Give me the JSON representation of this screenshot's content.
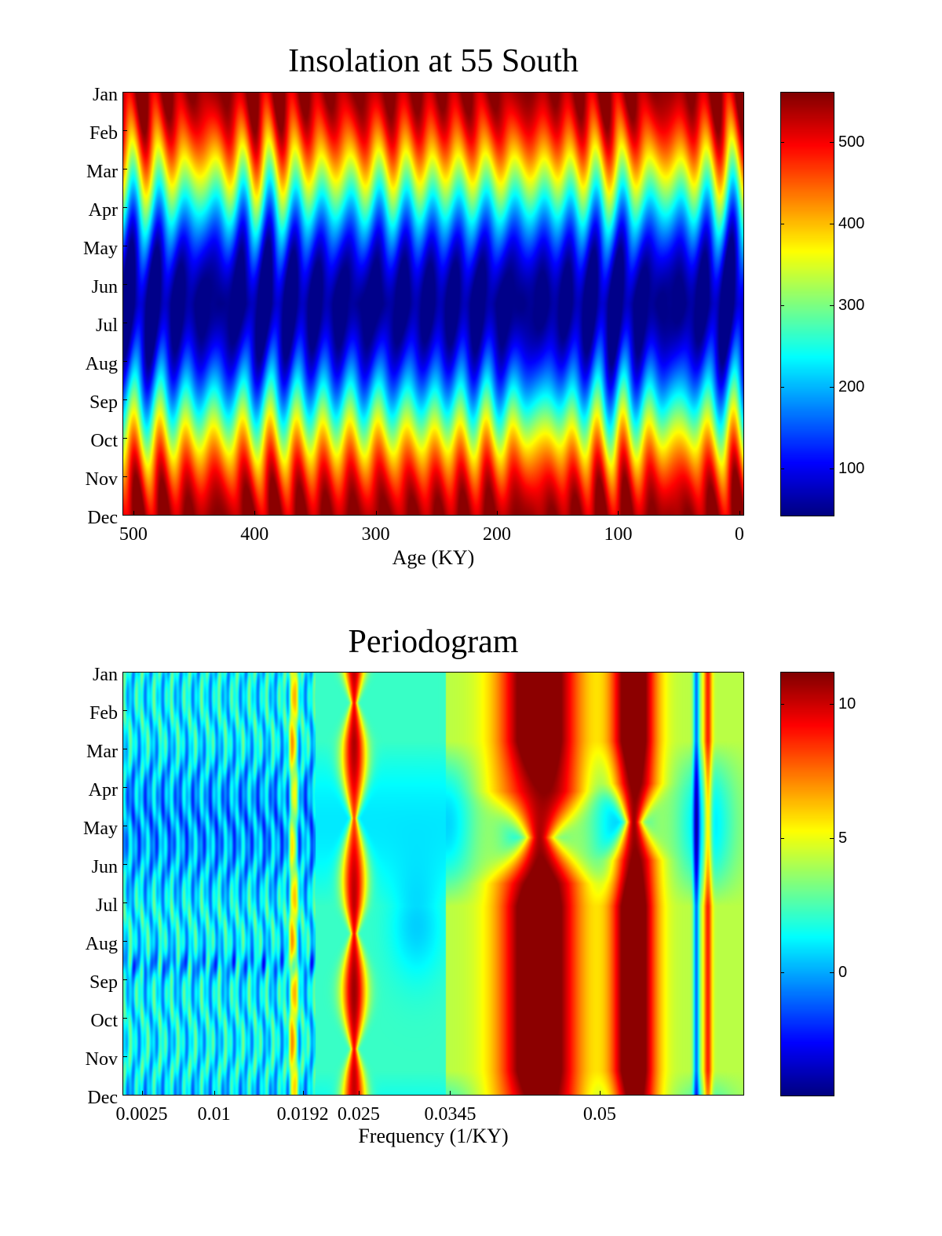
{
  "chart_data": [
    {
      "type": "heatmap",
      "title": "Insolation at 55 South",
      "xlabel": "Age (KY)",
      "ylabel": "",
      "x_ticks": [
        500,
        400,
        300,
        200,
        100,
        0
      ],
      "x_tick_labels": [
        "500",
        "400",
        "300",
        "200",
        "100",
        "0"
      ],
      "xlim": [
        509,
        -4
      ],
      "y_tick_labels": [
        "Jan",
        "Feb",
        "Mar",
        "Apr",
        "May",
        "Jun",
        "Jul",
        "Aug",
        "Sep",
        "Oct",
        "Nov",
        "Dec"
      ],
      "colorbar": {
        "ticks": [
          100,
          200,
          300,
          400,
          500
        ],
        "tick_labels": [
          "100",
          "200",
          "300",
          "400",
          "500"
        ],
        "range": [
          42,
          562
        ]
      },
      "colormap": "jet",
      "features": {
        "summer_max_months": [
          "Nov",
          "Dec",
          "Jan"
        ],
        "winter_min_months": [
          "May",
          "Jun",
          "Jul"
        ],
        "max_value": 555,
        "min_value": 45,
        "dominant_cycle_ky": 23
      }
    },
    {
      "type": "heatmap",
      "title": "Periodogram",
      "xlabel": "Frequency (1/KY)",
      "ylabel": "",
      "x_ticks": [
        0.0025,
        0.01,
        0.0192,
        0.025,
        0.0345,
        0.05
      ],
      "x_tick_labels": [
        "0.0025",
        "0.01",
        "0.0192",
        "0.025",
        "0.0345",
        "0.05"
      ],
      "xlim": [
        0.0005,
        0.065
      ],
      "y_tick_labels": [
        "Jan",
        "Feb",
        "Mar",
        "Apr",
        "May",
        "Jun",
        "Jul",
        "Aug",
        "Sep",
        "Oct",
        "Nov",
        "Dec"
      ],
      "colorbar": {
        "ticks": [
          0,
          5,
          10
        ],
        "tick_labels": [
          "0",
          "5",
          "10"
        ],
        "range": [
          -4.6,
          11.2
        ]
      },
      "colormap": "jet",
      "peaks": [
        {
          "frequency": 0.0245,
          "value": 10
        },
        {
          "frequency": 0.0437,
          "value": 11
        },
        {
          "frequency": 0.0535,
          "value": 11
        },
        {
          "frequency": 0.0182,
          "value": 7
        },
        {
          "frequency": 0.0612,
          "value": 7
        }
      ]
    }
  ]
}
